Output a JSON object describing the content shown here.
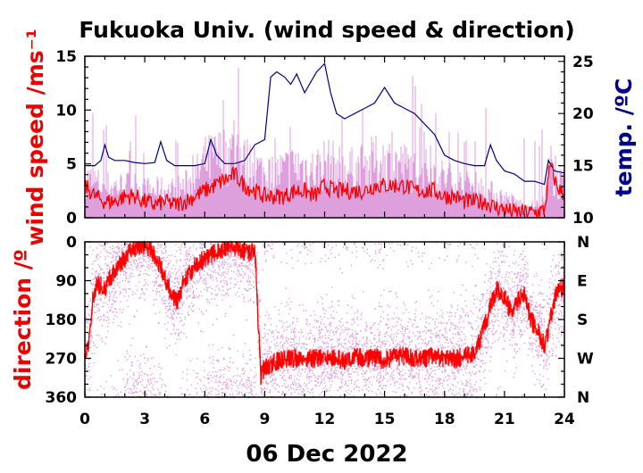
{
  "title": "Fukuoka Univ. (wind speed & direction)",
  "date_label": "06 Dec 2022",
  "colors": {
    "wind_avg": "#ff0000",
    "wind_gust": "#dda0dd",
    "temperature": "#00008b",
    "direction_avg": "#ff0000",
    "direction_samples": "#dda0dd"
  },
  "chart_data": [
    {
      "type": "line",
      "panel": "wind speed and temperature",
      "ylabel_left": "wind speed /ms⁻¹",
      "ylabel_right": "temp. /ºC",
      "xlim": [
        0,
        24
      ],
      "ylim_left": [
        0,
        15
      ],
      "ylim_right": [
        10,
        25.5
      ],
      "x_ticks": [
        "0",
        "3",
        "6",
        "9",
        "12",
        "15",
        "18",
        "21",
        "24"
      ],
      "y_ticks_left": [
        "0",
        "5",
        "10",
        "15"
      ],
      "y_ticks_right": [
        "10",
        "15",
        "20",
        "25"
      ],
      "series": [
        {
          "axis": "left",
          "x": [
            0,
            0.5,
            1,
            1.5,
            2,
            2.5,
            3,
            3.5,
            4,
            4.5,
            5,
            5.5,
            6,
            6.5,
            7,
            7.5,
            8,
            8.5,
            9,
            9.5,
            10,
            10.5,
            11,
            11.5,
            12,
            12.5,
            13,
            13.5,
            14,
            14.5,
            15,
            15.5,
            16,
            16.5,
            17,
            17.5,
            18,
            18.5,
            19,
            19.5,
            20,
            20.5,
            21,
            21.5,
            22,
            22.5,
            23,
            23.3,
            23.6,
            24
          ],
          "values": [
            3,
            2,
            1.5,
            1.5,
            2,
            2,
            1.5,
            1.2,
            1.5,
            1.2,
            1.5,
            2,
            2.5,
            3,
            3.5,
            4,
            3,
            2.5,
            2,
            2,
            2,
            2.5,
            2.5,
            2,
            3,
            2.5,
            2.5,
            2.5,
            2.5,
            3,
            3,
            3,
            3,
            2.5,
            2.5,
            2.5,
            2,
            2,
            1.5,
            1.5,
            1.5,
            1,
            0.8,
            0.5,
            0.5,
            0.5,
            0.7,
            5,
            3,
            2
          ]
        },
        {
          "axis": "left",
          "x": [
            0,
            0.5,
            1,
            1.5,
            2,
            2.5,
            3,
            3.5,
            4,
            4.5,
            5,
            5.5,
            6,
            6.5,
            7,
            7.5,
            8,
            8.5,
            9,
            9.5,
            10,
            10.5,
            11,
            11.5,
            12,
            12.5,
            13,
            13.5,
            14,
            14.5,
            15,
            15.5,
            16,
            16.5,
            17,
            17.5,
            18,
            18.5,
            19,
            19.5,
            20,
            20.5,
            21,
            21.5,
            22,
            22.5,
            23,
            23.3,
            23.6,
            24
          ],
          "values": [
            5,
            4.5,
            4,
            4,
            4,
            4,
            3.5,
            3.5,
            3.5,
            3.5,
            4,
            5,
            7,
            7.5,
            8,
            8.5,
            7,
            6.5,
            5.5,
            5.5,
            6,
            6.5,
            6.5,
            6,
            7,
            6.5,
            6,
            6,
            6.5,
            7,
            7,
            7,
            6.5,
            6,
            6,
            5.5,
            5,
            4.5,
            4,
            4,
            3.5,
            3,
            2.5,
            2,
            1.5,
            1.5,
            2,
            6.5,
            4.5,
            4
          ]
        },
        {
          "axis": "right",
          "x": [
            0,
            0.5,
            0.8,
            1,
            1.2,
            1.5,
            2,
            2.5,
            3,
            3.5,
            3.8,
            4.1,
            4.5,
            5,
            5.5,
            6,
            6.3,
            6.6,
            7,
            7.5,
            8,
            8.5,
            9,
            9.3,
            9.6,
            10,
            10.3,
            10.6,
            11,
            11.3,
            11.6,
            12,
            12.3,
            12.6,
            13,
            13.5,
            14,
            14.5,
            15,
            15.5,
            16,
            16.5,
            17,
            17.5,
            18,
            18.5,
            19,
            19.5,
            20,
            20.3,
            20.6,
            21,
            21.5,
            22,
            22.5,
            23,
            23.2,
            23.5,
            24
          ],
          "values": [
            15,
            15,
            15.5,
            17,
            15.8,
            15.5,
            15.5,
            15.3,
            15.2,
            15.3,
            17.3,
            15.5,
            15,
            15,
            15,
            15.2,
            17.5,
            16,
            15.2,
            15.2,
            15.5,
            17,
            17.5,
            23.5,
            24,
            23.5,
            22.8,
            23.8,
            22,
            23,
            24,
            24.8,
            22,
            20,
            19.5,
            20,
            20.5,
            21,
            22.5,
            21,
            20.5,
            20,
            19,
            18,
            16,
            15.5,
            15.2,
            15,
            15,
            17,
            15.5,
            14.5,
            14.2,
            13.5,
            13.5,
            13.2,
            15.5,
            14.5,
            14.3
          ]
        }
      ]
    },
    {
      "type": "scatter",
      "panel": "wind direction",
      "ylabel": "direction /º",
      "xlim": [
        0,
        24
      ],
      "ylim": [
        0,
        360
      ],
      "x_ticks": [
        "0",
        "3",
        "6",
        "9",
        "12",
        "15",
        "18",
        "21",
        "24"
      ],
      "y_ticks_left": [
        "0",
        "90",
        "180",
        "270",
        "360"
      ],
      "y_ticks_right": [
        "N",
        "E",
        "S",
        "W",
        "N"
      ],
      "series": [
        {
          "x": [
            0,
            0.2,
            0.4,
            0.6,
            0.8,
            1,
            1.3,
            1.6,
            2,
            2.3,
            2.6,
            3,
            3.3,
            3.6,
            4,
            4.3,
            4.6,
            5,
            5.3,
            5.6,
            6,
            6.3,
            6.6,
            7,
            7.3,
            7.6,
            7.9,
            8.2,
            8.5,
            8.8,
            9,
            9.5,
            10,
            10.5,
            11,
            11.5,
            12,
            12.5,
            13,
            13.5,
            14,
            14.5,
            15,
            15.5,
            16,
            16.5,
            17,
            17.5,
            18,
            18.5,
            19,
            19.5,
            20,
            20.3,
            20.6,
            21,
            21.3,
            21.6,
            22,
            22.3,
            22.6,
            23,
            23.3,
            23.6,
            24
          ],
          "values": [
            270,
            240,
            130,
            100,
            100,
            110,
            80,
            60,
            40,
            20,
            10,
            10,
            15,
            40,
            80,
            120,
            140,
            90,
            70,
            50,
            40,
            30,
            20,
            15,
            10,
            10,
            20,
            30,
            10,
            310,
            290,
            280,
            270,
            270,
            270,
            270,
            265,
            270,
            275,
            265,
            270,
            270,
            275,
            265,
            265,
            270,
            270,
            265,
            270,
            270,
            265,
            260,
            200,
            150,
            110,
            130,
            160,
            140,
            120,
            180,
            200,
            240,
            180,
            120,
            100
          ]
        }
      ]
    }
  ]
}
